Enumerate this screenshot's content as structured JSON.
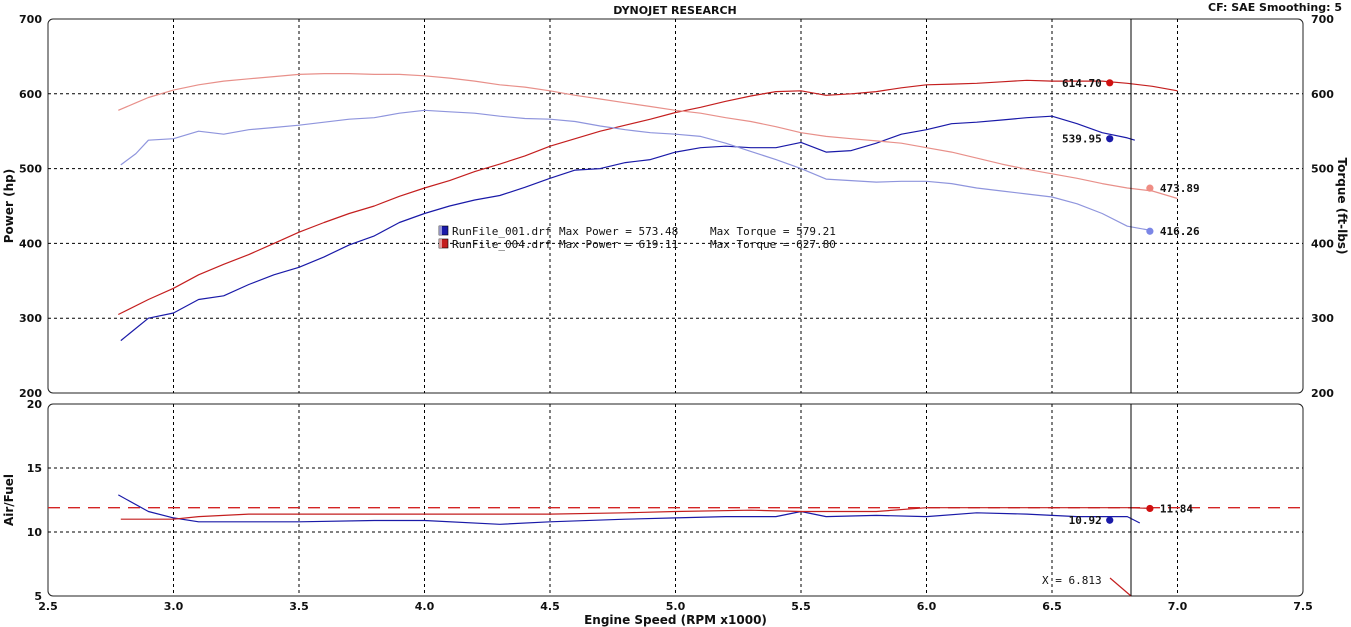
{
  "header": {
    "title": "DYNOJET RESEARCH",
    "status": "CF: SAE  Smoothing: 5"
  },
  "legend": [
    {
      "file": "RunFile_001.drf",
      "power_label": "Max Power = 573.48",
      "torque_label": "Max Torque = 579.21",
      "color": "#1a1aa8"
    },
    {
      "file": "RunFile_004.drf",
      "power_label": "Max Power = 619.11",
      "torque_label": "Max Torque = 627.80",
      "color": "#c41f1f"
    }
  ],
  "cursor": {
    "label": "X = 6.813",
    "rpm": 6.813
  },
  "chart_data": [
    {
      "type": "line",
      "xlabel": "Engine Speed (RPM x1000)",
      "ylabel": "Power (hp)",
      "y2label": "Torque (ft-lbs)",
      "xlim": [
        2.5,
        7.5
      ],
      "ylim": [
        200,
        700
      ],
      "y2lim": [
        200,
        700
      ],
      "x_ticks": [
        "2.5",
        "3.0",
        "3.5",
        "4.0",
        "4.5",
        "5.0",
        "5.5",
        "6.0",
        "6.5",
        "7.0",
        "7.5"
      ],
      "y_ticks": [
        "200",
        "300",
        "400",
        "500",
        "600",
        "700"
      ],
      "grid": true,
      "series": [
        {
          "name": "RunFile_001.drf Power",
          "color": "#1a1aa8",
          "markerColor": "#1a1aa8",
          "x": [
            2.79,
            2.9,
            3.0,
            3.1,
            3.2,
            3.3,
            3.4,
            3.5,
            3.6,
            3.7,
            3.8,
            3.9,
            4.0,
            4.1,
            4.2,
            4.3,
            4.4,
            4.5,
            4.6,
            4.7,
            4.8,
            4.9,
            5.0,
            5.1,
            5.2,
            5.3,
            5.4,
            5.5,
            5.6,
            5.7,
            5.8,
            5.9,
            6.0,
            6.1,
            6.2,
            6.3,
            6.4,
            6.5,
            6.6,
            6.7,
            6.8,
            6.83
          ],
          "y": [
            270,
            300,
            307,
            325,
            330,
            345,
            358,
            368,
            382,
            398,
            410,
            428,
            440,
            450,
            458,
            464,
            475,
            487,
            498,
            500,
            508,
            512,
            522,
            528,
            530,
            528,
            528,
            535,
            522,
            524,
            534,
            546,
            552,
            560,
            562,
            565,
            568,
            570,
            560,
            548,
            541,
            538
          ],
          "marker": {
            "x": 6.73,
            "y": 539.95,
            "label": "539.95"
          }
        },
        {
          "name": "RunFile_004.drf Power",
          "color": "#c41f1f",
          "markerColor": "#d01010",
          "x": [
            2.78,
            2.9,
            3.0,
            3.1,
            3.2,
            3.3,
            3.4,
            3.5,
            3.6,
            3.7,
            3.8,
            3.9,
            4.0,
            4.1,
            4.2,
            4.3,
            4.4,
            4.5,
            4.6,
            4.7,
            4.8,
            4.9,
            5.0,
            5.1,
            5.2,
            5.3,
            5.4,
            5.5,
            5.6,
            5.7,
            5.8,
            5.9,
            6.0,
            6.1,
            6.2,
            6.3,
            6.4,
            6.5,
            6.6,
            6.7,
            6.8,
            6.9,
            7.0
          ],
          "y": [
            305,
            325,
            340,
            358,
            372,
            385,
            400,
            415,
            428,
            440,
            450,
            463,
            474,
            484,
            496,
            506,
            517,
            530,
            540,
            550,
            558,
            566,
            575,
            582,
            590,
            597,
            603,
            604,
            598,
            600,
            603,
            608,
            612,
            613,
            614,
            616,
            618,
            617,
            617,
            617,
            614,
            610,
            604
          ],
          "marker": {
            "x": 6.73,
            "y": 614.7,
            "label": "614.70"
          }
        },
        {
          "name": "RunFile_001.drf Torque",
          "color": "#8f95dd",
          "markerColor": "#7b86e6",
          "x": [
            2.79,
            2.85,
            2.9,
            3.0,
            3.1,
            3.2,
            3.3,
            3.4,
            3.5,
            3.6,
            3.7,
            3.8,
            3.9,
            4.0,
            4.1,
            4.2,
            4.3,
            4.4,
            4.5,
            4.6,
            4.7,
            4.8,
            4.9,
            5.0,
            5.1,
            5.2,
            5.3,
            5.4,
            5.5,
            5.6,
            5.7,
            5.8,
            5.9,
            6.0,
            6.1,
            6.2,
            6.3,
            6.4,
            6.5,
            6.6,
            6.7,
            6.8,
            6.9
          ],
          "y": [
            505,
            520,
            538,
            540,
            550,
            546,
            552,
            555,
            558,
            562,
            566,
            568,
            574,
            578,
            576,
            574,
            570,
            567,
            566,
            563,
            557,
            552,
            548,
            546,
            543,
            534,
            523,
            512,
            500,
            486,
            484,
            482,
            483,
            483,
            480,
            474,
            470,
            466,
            462,
            453,
            440,
            423,
            417
          ],
          "marker": {
            "x": 6.89,
            "y": 416.26,
            "label": "416.26"
          }
        },
        {
          "name": "RunFile_004.drf Torque",
          "color": "#e8908a",
          "markerColor": "#ef8d84",
          "x": [
            2.78,
            2.85,
            2.9,
            3.0,
            3.1,
            3.2,
            3.3,
            3.4,
            3.5,
            3.6,
            3.7,
            3.8,
            3.9,
            4.0,
            4.1,
            4.2,
            4.3,
            4.4,
            4.5,
            4.6,
            4.7,
            4.8,
            4.9,
            5.0,
            5.1,
            5.2,
            5.3,
            5.4,
            5.5,
            5.6,
            5.7,
            5.8,
            5.9,
            6.0,
            6.1,
            6.2,
            6.3,
            6.4,
            6.5,
            6.6,
            6.7,
            6.8,
            6.9,
            7.0
          ],
          "y": [
            578,
            588,
            595,
            605,
            612,
            617,
            620,
            623,
            626,
            627,
            627,
            626,
            626,
            624,
            621,
            617,
            612,
            609,
            604,
            598,
            593,
            588,
            583,
            578,
            574,
            568,
            563,
            556,
            548,
            543,
            540,
            537,
            534,
            528,
            522,
            514,
            506,
            499,
            493,
            487,
            480,
            474,
            470,
            460
          ],
          "marker": {
            "x": 6.89,
            "y": 473.89,
            "label": "473.89"
          }
        }
      ]
    },
    {
      "type": "line",
      "xlabel": "Engine Speed (RPM x1000)",
      "ylabel": "Air/Fuel",
      "xlim": [
        2.5,
        7.5
      ],
      "ylim": [
        5,
        20
      ],
      "y_ticks": [
        "5",
        "10",
        "15",
        "20"
      ],
      "grid": true,
      "reference_line": {
        "y": 11.9,
        "color": "#d42424",
        "style": "dashed"
      },
      "series": [
        {
          "name": "RunFile_001.drf Air/Fuel",
          "color": "#1a1aa8",
          "markerColor": "#1a1aa8",
          "x": [
            2.78,
            2.9,
            3.0,
            3.1,
            3.3,
            3.5,
            3.8,
            4.0,
            4.3,
            4.5,
            4.8,
            5.0,
            5.2,
            5.4,
            5.5,
            5.6,
            5.8,
            6.0,
            6.2,
            6.4,
            6.6,
            6.8,
            6.85
          ],
          "y": [
            12.9,
            11.6,
            11.1,
            10.8,
            10.8,
            10.8,
            10.9,
            10.9,
            10.6,
            10.8,
            11.0,
            11.1,
            11.2,
            11.2,
            11.6,
            11.2,
            11.3,
            11.2,
            11.5,
            11.4,
            11.2,
            11.2,
            10.7
          ],
          "marker": {
            "x": 6.73,
            "y": 10.92,
            "label": "10.92"
          }
        },
        {
          "name": "RunFile_004.drf Air/Fuel",
          "color": "#c41f1f",
          "markerColor": "#d01010",
          "x": [
            2.79,
            2.9,
            3.0,
            3.1,
            3.3,
            3.5,
            3.8,
            4.0,
            4.3,
            4.5,
            4.8,
            5.0,
            5.3,
            5.5,
            5.8,
            6.0,
            6.3,
            6.5,
            6.8,
            6.9
          ],
          "y": [
            11.0,
            11.0,
            11.0,
            11.2,
            11.4,
            11.4,
            11.4,
            11.4,
            11.4,
            11.4,
            11.5,
            11.6,
            11.7,
            11.6,
            11.6,
            11.9,
            11.9,
            11.9,
            11.9,
            11.84
          ],
          "marker": {
            "x": 6.89,
            "y": 11.84,
            "label": "11.84"
          }
        }
      ]
    }
  ]
}
